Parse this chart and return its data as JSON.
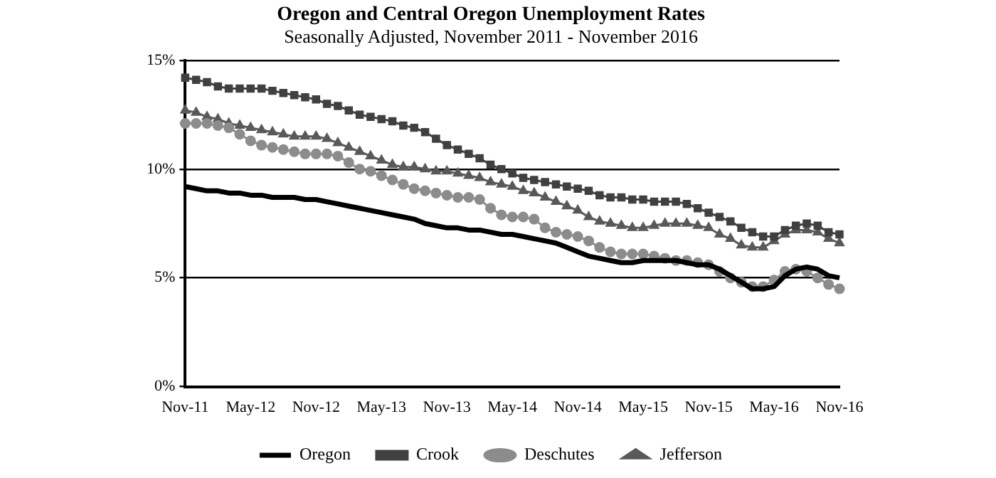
{
  "chart_data": {
    "type": "line",
    "title": "Oregon and Central Oregon Unemployment Rates",
    "subtitle": "Seasonally Adjusted, November 2011 - November 2016",
    "categories": [
      "Nov-11",
      null,
      null,
      null,
      null,
      null,
      "May-12",
      null,
      null,
      null,
      null,
      null,
      "Nov-12",
      null,
      null,
      null,
      null,
      null,
      "May-13",
      null,
      null,
      null,
      null,
      null,
      "Nov-13",
      null,
      null,
      null,
      null,
      null,
      "May-14",
      null,
      null,
      null,
      null,
      null,
      "Nov-14",
      null,
      null,
      null,
      null,
      null,
      "May-15",
      null,
      null,
      null,
      null,
      null,
      "Nov-15",
      null,
      null,
      null,
      null,
      null,
      "May-16",
      null,
      null,
      null,
      null,
      null,
      "Nov-16"
    ],
    "series": [
      {
        "name": "Oregon",
        "color": "#000000",
        "marker": "none",
        "values": [
          9.2,
          9.1,
          9.0,
          9.0,
          8.9,
          8.9,
          8.8,
          8.8,
          8.7,
          8.7,
          8.7,
          8.6,
          8.6,
          8.5,
          8.4,
          8.3,
          8.2,
          8.1,
          8.0,
          7.9,
          7.8,
          7.7,
          7.5,
          7.4,
          7.3,
          7.3,
          7.2,
          7.2,
          7.1,
          7.0,
          7.0,
          6.9,
          6.8,
          6.7,
          6.6,
          6.4,
          6.2,
          6.0,
          5.9,
          5.8,
          5.7,
          5.7,
          5.8,
          5.8,
          5.8,
          5.8,
          5.7,
          5.6,
          5.6,
          5.4,
          5.1,
          4.8,
          4.5,
          4.5,
          4.6,
          5.1,
          5.4,
          5.5,
          5.4,
          5.1,
          5.0
        ]
      },
      {
        "name": "Crook",
        "color": "#404040",
        "marker": "square",
        "values": [
          14.2,
          14.1,
          14.0,
          13.8,
          13.7,
          13.7,
          13.7,
          13.7,
          13.6,
          13.5,
          13.4,
          13.3,
          13.2,
          13.0,
          12.9,
          12.7,
          12.5,
          12.4,
          12.3,
          12.2,
          12.0,
          11.9,
          11.7,
          11.4,
          11.1,
          10.9,
          10.7,
          10.5,
          10.2,
          10.0,
          9.8,
          9.6,
          9.5,
          9.4,
          9.3,
          9.2,
          9.1,
          9.0,
          8.8,
          8.7,
          8.7,
          8.6,
          8.6,
          8.5,
          8.5,
          8.5,
          8.4,
          8.2,
          8.0,
          7.8,
          7.6,
          7.3,
          7.1,
          6.9,
          6.9,
          7.2,
          7.4,
          7.5,
          7.4,
          7.1,
          7.0
        ]
      },
      {
        "name": "Deschutes",
        "color": "#8c8c8c",
        "marker": "circle",
        "values": [
          12.1,
          12.1,
          12.1,
          12.0,
          11.9,
          11.6,
          11.3,
          11.1,
          11.0,
          10.9,
          10.8,
          10.7,
          10.7,
          10.7,
          10.6,
          10.3,
          10.0,
          9.9,
          9.7,
          9.5,
          9.3,
          9.1,
          9.0,
          8.9,
          8.8,
          8.7,
          8.7,
          8.6,
          8.2,
          7.9,
          7.8,
          7.8,
          7.7,
          7.3,
          7.1,
          7.0,
          6.9,
          6.7,
          6.4,
          6.2,
          6.1,
          6.1,
          6.1,
          6.0,
          5.9,
          5.8,
          5.8,
          5.7,
          5.6,
          5.3,
          5.0,
          4.8,
          4.6,
          4.6,
          4.9,
          5.3,
          5.4,
          5.3,
          5.0,
          4.7,
          4.5
        ]
      },
      {
        "name": "Jefferson",
        "color": "#595959",
        "marker": "triangle",
        "values": [
          12.7,
          12.6,
          12.4,
          12.3,
          12.1,
          12.0,
          11.9,
          11.8,
          11.7,
          11.6,
          11.5,
          11.5,
          11.5,
          11.4,
          11.2,
          11.0,
          10.8,
          10.6,
          10.4,
          10.2,
          10.1,
          10.1,
          10.0,
          9.9,
          9.9,
          9.8,
          9.7,
          9.6,
          9.4,
          9.3,
          9.2,
          9.0,
          8.9,
          8.7,
          8.5,
          8.3,
          8.1,
          7.8,
          7.6,
          7.5,
          7.4,
          7.3,
          7.3,
          7.4,
          7.5,
          7.5,
          7.5,
          7.4,
          7.3,
          7.0,
          6.8,
          6.5,
          6.4,
          6.4,
          6.7,
          7.0,
          7.2,
          7.2,
          7.1,
          6.8,
          6.6
        ]
      }
    ],
    "ylim": [
      0,
      15
    ],
    "yticks": [
      {
        "value": 0,
        "label": "0%"
      },
      {
        "value": 5,
        "label": "5%"
      },
      {
        "value": 10,
        "label": "10%"
      },
      {
        "value": 15,
        "label": "15%"
      }
    ],
    "grid": "y",
    "legend": "bottom"
  }
}
